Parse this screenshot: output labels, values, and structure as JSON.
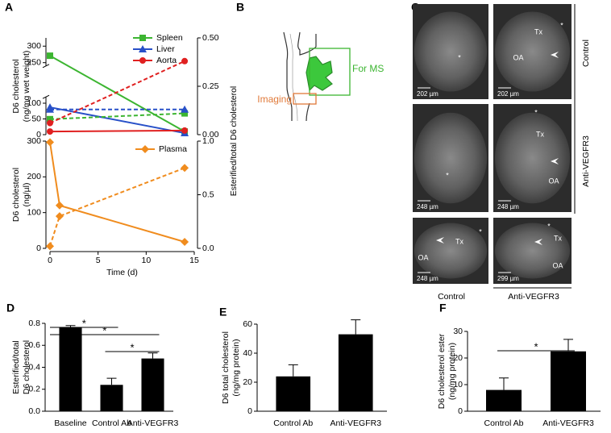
{
  "panels": {
    "letters": [
      "A",
      "B",
      "C",
      "D",
      "E",
      "F"
    ],
    "B": {
      "imaging": "Imaging",
      "ms": "For MS"
    },
    "C": {
      "rows": [
        "Control",
        "Anti-VEGFR3"
      ],
      "columns": [
        "Control",
        "Anti-VEGFR3"
      ],
      "images": [
        {
          "scale": "202 µm",
          "labels": [
            "*"
          ]
        },
        {
          "scale": "202 µm",
          "labels": [
            "Tx",
            "*",
            "OA"
          ]
        },
        {
          "scale": "248 µm",
          "labels": [
            "*"
          ]
        },
        {
          "scale": "248 µm",
          "labels": [
            "*",
            "Tx",
            "OA"
          ]
        },
        {
          "scale": "248 µm",
          "labels": [
            "Tx",
            "*",
            "OA"
          ]
        },
        {
          "scale": "299 µm",
          "labels": [
            "*",
            "Tx",
            "OA"
          ]
        }
      ]
    }
  },
  "chart_data": [
    {
      "type": "line",
      "ylabel": [
        "D6 cholesterol",
        "(ng/mg wet weight)"
      ],
      "y2label": "Esterified/total D6 cholesterol",
      "x": [
        0,
        14
      ],
      "xlim": [
        0,
        15
      ],
      "ylim": [
        0,
        325
      ],
      "ybreak": [
        120,
        240
      ],
      "yticks": [
        0,
        50,
        100,
        250,
        300
      ],
      "y2lim": [
        0,
        0.5
      ],
      "y2ticks": [
        {
          "value": 0,
          "label": "0.00"
        },
        {
          "value": 0.25,
          "label": "0.25"
        },
        {
          "value": 0.5,
          "label": "0.50"
        }
      ],
      "legend": "upper right",
      "series": [
        {
          "name": "Spleen",
          "color": "#3cb531",
          "marker": "square",
          "values": [
            271,
            10
          ]
        },
        {
          "name": "Liver",
          "color": "#2850c8",
          "marker": "triangle",
          "values": [
            87,
            5
          ]
        },
        {
          "name": "Aorta",
          "color": "#e02020",
          "marker": "circle",
          "values": [
            10,
            13
          ]
        },
        {
          "color": "#3cb531",
          "marker": "square",
          "dashed": true,
          "axis": "y2",
          "values": [
            0.08,
            0.11
          ]
        },
        {
          "color": "#2850c8",
          "marker": "triangle",
          "dashed": true,
          "axis": "y2",
          "values": [
            0.13,
            0.13
          ]
        },
        {
          "color": "#e02020",
          "marker": "circle",
          "dashed": true,
          "axis": "y2",
          "values": [
            0.06,
            0.38
          ]
        }
      ]
    },
    {
      "type": "line",
      "ylabel": [
        "D6 cholesterol",
        "(ng/µl)"
      ],
      "xlabel": "Time (d)",
      "x": [
        0,
        1,
        14
      ],
      "xlim": [
        0,
        15
      ],
      "xticks": [
        0,
        5,
        10,
        15
      ],
      "ylim": [
        0,
        300
      ],
      "yticks": [
        0,
        100,
        200,
        300
      ],
      "y2lim": [
        0,
        1
      ],
      "y2ticks": [
        {
          "value": 0,
          "label": "0.0"
        },
        {
          "value": 0.5,
          "label": "0.5"
        },
        {
          "value": 1,
          "label": "1.0"
        }
      ],
      "legend": "upper right",
      "series": [
        {
          "name": "Plasma",
          "color": "#f08c1e",
          "marker": "diamond",
          "values": [
            297,
            120,
            18
          ]
        },
        {
          "color": "#f08c1e",
          "marker": "diamond",
          "dashed": true,
          "axis": "y2",
          "values": [
            0.02,
            0.3,
            0.75
          ]
        }
      ]
    },
    {
      "type": "bar",
      "ylabel": [
        "Esterified/total",
        "D6 cholesterol"
      ],
      "categories": [
        "Baseline",
        "Control Ab",
        "Anti-VEGFR3"
      ],
      "values": [
        0.76,
        0.24,
        0.48
      ],
      "errors": [
        0.02,
        0.06,
        0.05
      ],
      "color": "#000000",
      "ylim": [
        0,
        0.8
      ],
      "yticks": [
        {
          "value": 0,
          "label": "0.0"
        },
        {
          "value": 0.2,
          "label": "0.2"
        },
        {
          "value": 0.4,
          "label": "0.4"
        },
        {
          "value": 0.6,
          "label": "0.6"
        },
        {
          "value": 0.8,
          "label": "0.8"
        }
      ],
      "significance": [
        "*",
        "*",
        "*"
      ]
    },
    {
      "type": "bar",
      "ylabel": [
        "D6 total cholesterol",
        "(ng/mg protein)"
      ],
      "categories": [
        "Control Ab",
        "Anti-VEGFR3"
      ],
      "values": [
        24,
        53
      ],
      "errors": [
        8,
        10
      ],
      "color": "#000000",
      "ylim": [
        0,
        60
      ],
      "yticks": [
        0,
        20,
        40,
        60
      ]
    },
    {
      "type": "bar",
      "ylabel": [
        "D6 cholesterol ester",
        "(ng/mg protein)"
      ],
      "categories": [
        "Control Ab",
        "Anti-VEGFR3"
      ],
      "values": [
        8,
        22.5
      ],
      "errors": [
        4.5,
        4.5
      ],
      "color": "#000000",
      "ylim": [
        0,
        30
      ],
      "yticks": [
        0,
        10,
        20,
        30
      ],
      "significance": [
        "*"
      ]
    }
  ]
}
